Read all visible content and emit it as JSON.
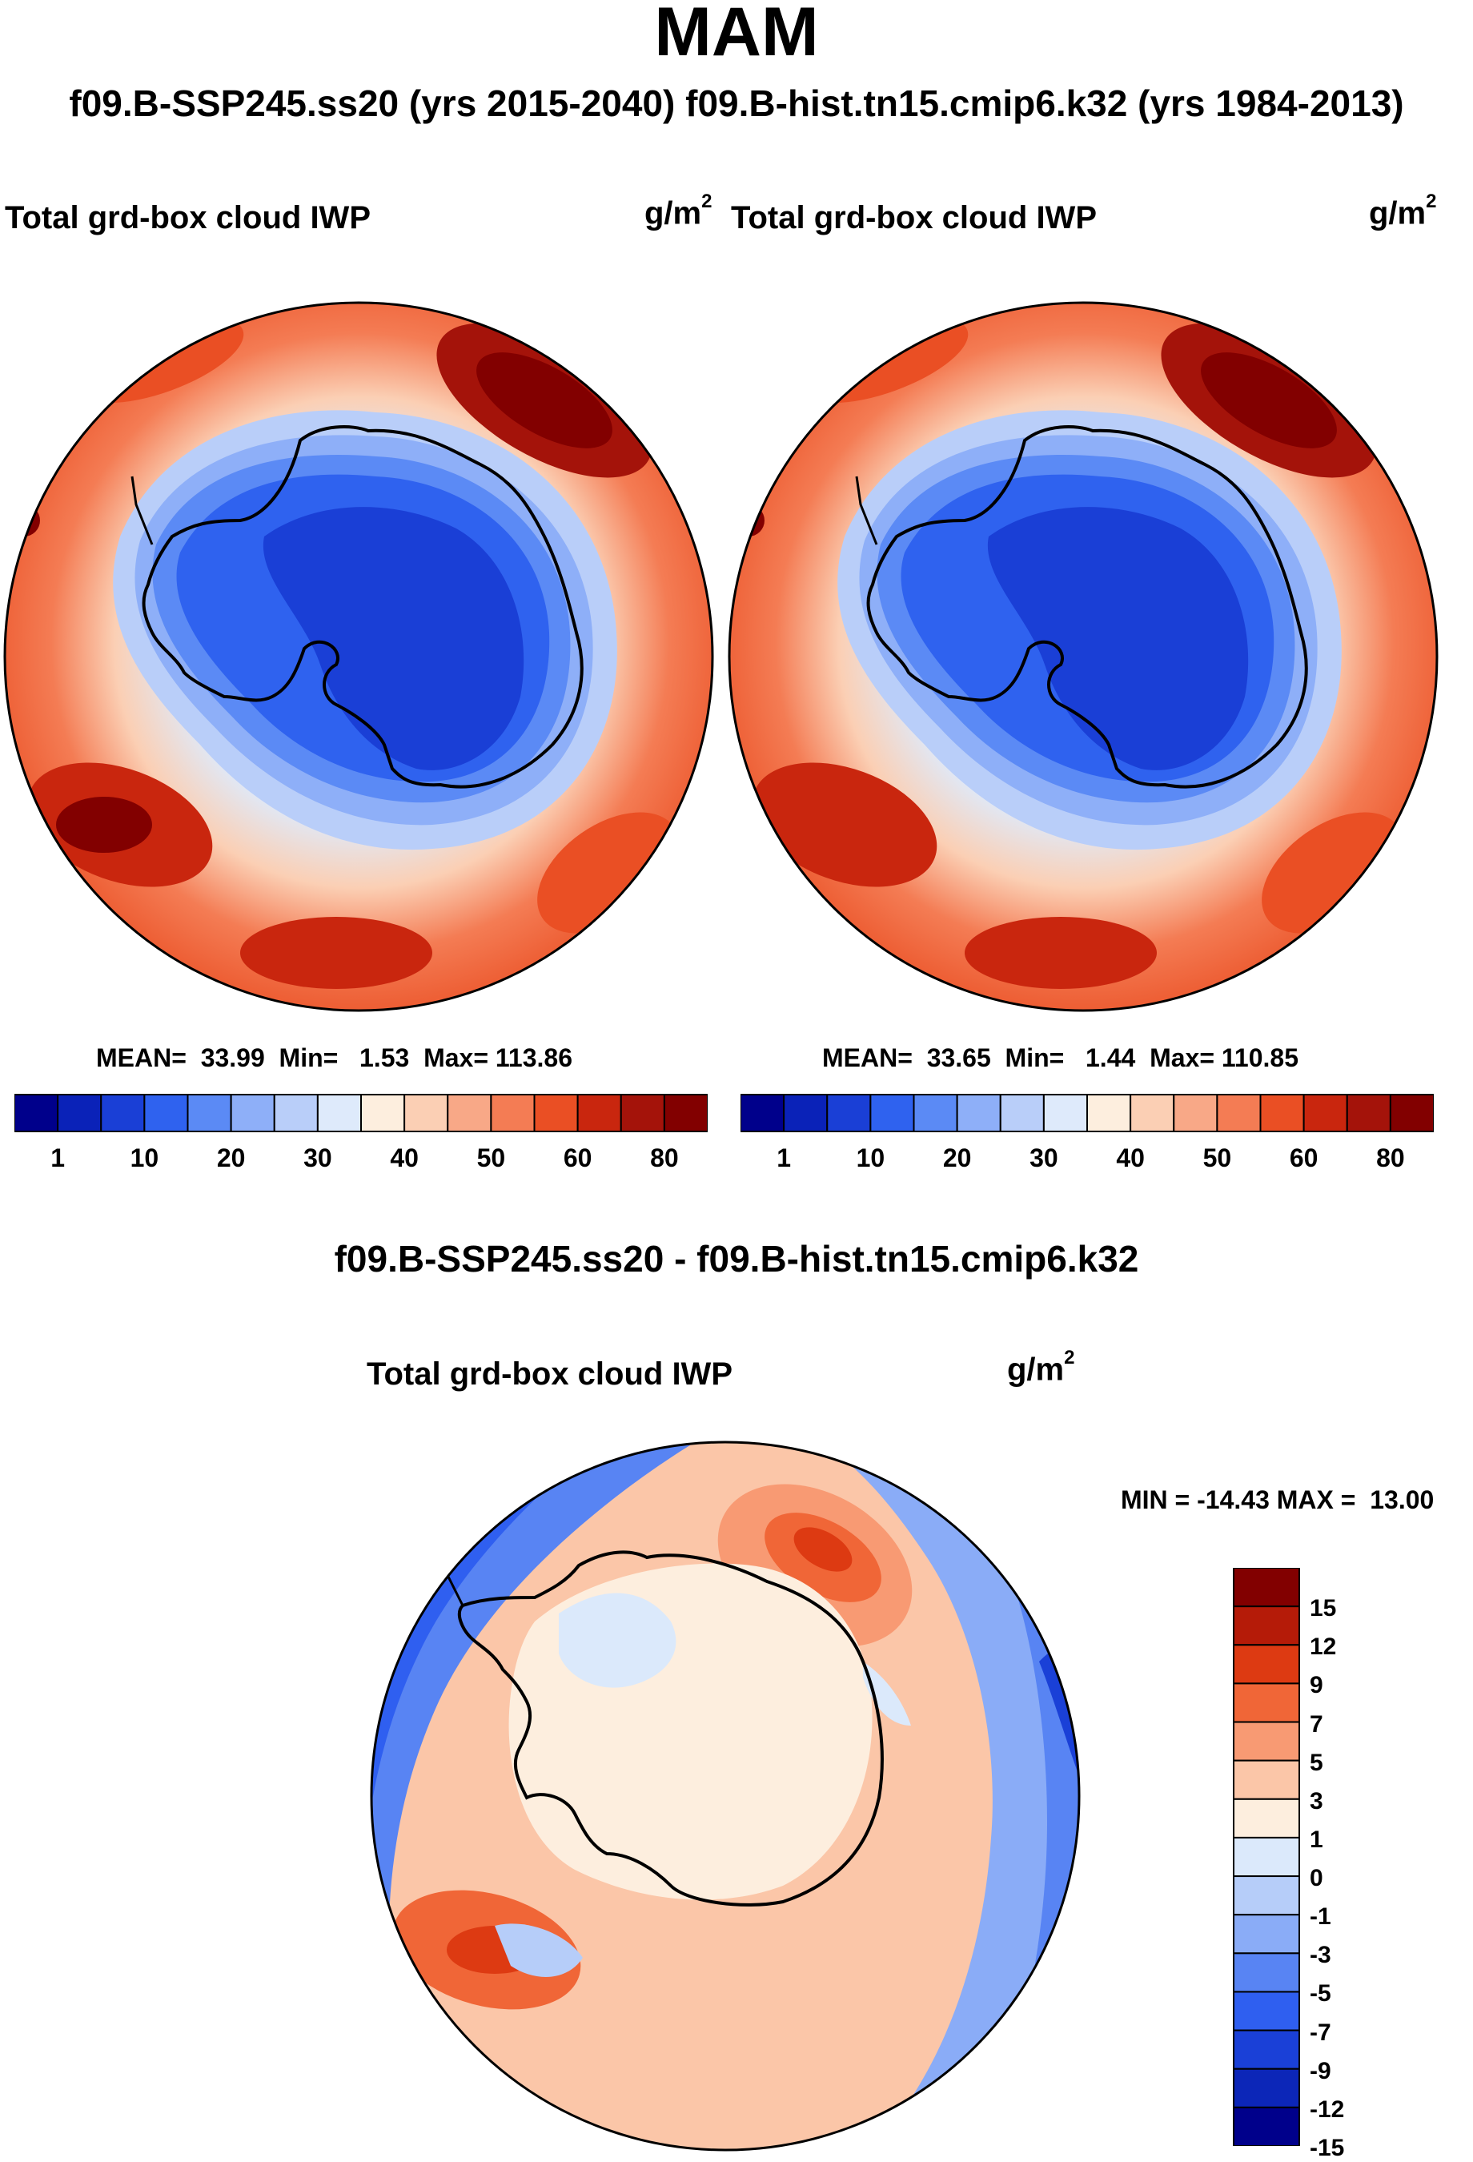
{
  "season": "MAM",
  "header": "f09.B-SSP245.ss20 (yrs 2015-2040)  f09.B-hist.tn15.cmip6.k32 (yrs 1984-2013)",
  "panels": [
    {
      "title": "Total grd-box cloud IWP",
      "units_base": "g/m",
      "units_exp": "2",
      "stats": "MEAN=  33.99  Min=   1.53  Max= 113.86",
      "case": "f09.B-SSP245.ss20 (yrs 2015-2040)"
    },
    {
      "title": "Total grd-box cloud IWP",
      "units_base": "g/m",
      "units_exp": "2",
      "stats": "MEAN=  33.65  Min=   1.44  Max= 110.85",
      "case": "f09.B-hist.tn15.cmip6.k32 (yrs 1984-2013)"
    }
  ],
  "abs_colorbar": {
    "colors": [
      "#00008b",
      "#0a22b8",
      "#1a3fd6",
      "#2f62ef",
      "#5b8af5",
      "#8eaff8",
      "#b9cef9",
      "#deeafb",
      "#fdeede",
      "#fbcfb4",
      "#f8a887",
      "#f47c54",
      "#ea4f24",
      "#c9260e",
      "#a4130a",
      "#820000"
    ],
    "labels": [
      "1",
      "10",
      "20",
      "30",
      "40",
      "50",
      "60",
      "80"
    ]
  },
  "diff": {
    "title": "f09.B-SSP245.ss20 - f09.B-hist.tn15.cmip6.k32",
    "panel_title": "Total grd-box cloud IWP",
    "units_base": "g/m",
    "units_exp": "2",
    "minmax": "MIN = -14.43 MAX =  13.00",
    "colorbar": {
      "colors_top_to_bottom": [
        "#820000",
        "#b51b08",
        "#dd3a12",
        "#f06637",
        "#f89a73",
        "#fbc6a8",
        "#fdeede",
        "#dbe9fb",
        "#b6cdf9",
        "#8aacf7",
        "#5884f3",
        "#2f5ff0",
        "#1a40d7",
        "#0c26b8",
        "#00008b"
      ],
      "labels_top_to_bottom": [
        "15",
        "12",
        "9",
        "7",
        "5",
        "3",
        "1",
        "0",
        "-1",
        "-3",
        "-5",
        "-7",
        "-9",
        "-12",
        "-15"
      ]
    }
  }
}
